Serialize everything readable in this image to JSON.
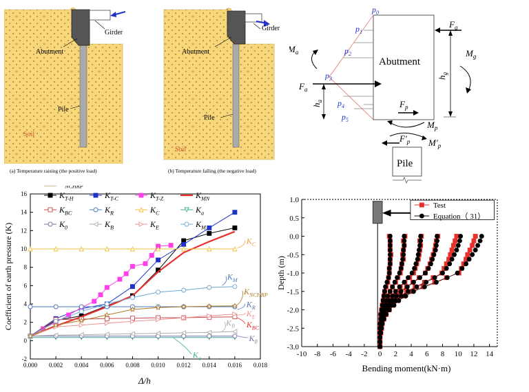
{
  "panel_a": {
    "girder": "Girder",
    "abutment": "Abutment",
    "pile": "Pile",
    "soil": "Soil",
    "caption": "(a) Temperature raising (the positive load)"
  },
  "panel_b": {
    "girder": "Girder",
    "abutment": "Abutment",
    "pile": "Pile",
    "soil": "Soil",
    "caption": "(b) Temperature falling (the negative load)"
  },
  "diagram": {
    "abutment": "Abutment",
    "pile": "Pile",
    "p0": "p",
    "p0s": "0",
    "p1": "p",
    "p1s": "1",
    "p2": "p",
    "p2s": "2",
    "p3": "p",
    "p3s": "3",
    "p4": "p",
    "p4s": "4",
    "p5": "p",
    "p5s": "5",
    "Fg": "F",
    "Fgs": "g",
    "Ma": "M",
    "Mas": "a",
    "Mg": "M",
    "Mgs": "g",
    "Fa": "F",
    "Fas": "a",
    "hg": "h",
    "hgs": "g",
    "ha": "h",
    "has": "a",
    "Fp": "F",
    "Fps": "p",
    "Mp": "M",
    "Mps": "p",
    "Fp2": "F′",
    "Fp2s": "p",
    "Mp2": "M′",
    "Mp2s": "p"
  },
  "colors": {
    "soil": "#f8d77a",
    "red": "#e8312c",
    "blue": "#1f34c7",
    "magenta": "#ff3ee8",
    "diag_red": "#e88a8a"
  },
  "chart_data": [
    {
      "type": "line",
      "xlabel": "Δ/h",
      "ylabel": "Coefficient of earth pressure (K)",
      "xlim": [
        0,
        0.018
      ],
      "ylim": [
        -2,
        16
      ],
      "xticks": [
        "0.000",
        "0.002",
        "0.004",
        "0.006",
        "0.008",
        "0.010",
        "0.012",
        "0.014",
        "0.016",
        "0.018"
      ],
      "yticks": [
        "-2",
        "0",
        "2",
        "4",
        "6",
        "8",
        "10",
        "12",
        "14",
        "16"
      ],
      "legend": [
        {
          "base": "K",
          "sub": "T-H"
        },
        {
          "base": "K",
          "sub": "T-C"
        },
        {
          "base": "K",
          "sub": "T-Z"
        },
        {
          "base": "K",
          "sub": "MN"
        },
        {
          "base": "K",
          "sub": "BC"
        },
        {
          "base": "K",
          "sub": "R"
        },
        {
          "base": "K",
          "sub": "C"
        },
        {
          "base": "K",
          "sub": "a"
        },
        {
          "base": "K",
          "sub": "0"
        },
        {
          "base": "K",
          "sub": "B"
        },
        {
          "base": "K",
          "sub": "E"
        },
        {
          "base": "K",
          "sub": "M"
        },
        {
          "base": "K",
          "sub": "NCHRP"
        }
      ],
      "series": [
        {
          "name": "K_T-H",
          "color": "#000000",
          "marker": "square-filled",
          "x": [
            0,
            0.002,
            0.004,
            0.006,
            0.008,
            0.01,
            0.012,
            0.014,
            0.016
          ],
          "y": [
            0.5,
            2.2,
            2.7,
            3.8,
            4.9,
            7.7,
            10.9,
            11.7,
            12.3
          ]
        },
        {
          "name": "K_T-C",
          "color": "#1f34c7",
          "marker": "square-filled",
          "x": [
            0,
            0.002,
            0.004,
            0.006,
            0.008,
            0.01,
            0.012,
            0.014,
            0.016
          ],
          "y": [
            0.5,
            2.4,
            3.5,
            4.0,
            5.9,
            8.8,
            10.5,
            12.3,
            14.0
          ]
        },
        {
          "name": "K_T-Z",
          "color": "#ff3ee8",
          "marker": "square-filled",
          "x": [
            0,
            0.001,
            0.002,
            0.003,
            0.004,
            0.005,
            0.0055,
            0.006,
            0.007,
            0.0075,
            0.008,
            0.009,
            0.0095,
            0.01,
            0.011
          ],
          "y": [
            0.5,
            1.3,
            2.0,
            2.8,
            3.6,
            4.3,
            5.0,
            5.8,
            6.7,
            7.3,
            8.1,
            8.4,
            9.3,
            10.3,
            10.4
          ]
        },
        {
          "name": "K_MN",
          "color": "#e8312c",
          "marker": "none",
          "width": 2.2,
          "x": [
            0,
            0.002,
            0.004,
            0.006,
            0.008,
            0.01,
            0.012,
            0.014,
            0.016
          ],
          "y": [
            0.5,
            1.6,
            2.6,
            3.7,
            4.9,
            7.5,
            9.6,
            10.8,
            11.9
          ]
        },
        {
          "name": "K_BC",
          "color": "#c84a4a",
          "marker": "square-open",
          "x": [
            0,
            0.002,
            0.004,
            0.006,
            0.008,
            0.01,
            0.012,
            0.014,
            0.016
          ],
          "y": [
            0.5,
            2.3,
            2.35,
            2.4,
            2.45,
            2.5,
            2.5,
            2.55,
            2.6
          ]
        },
        {
          "name": "K_R",
          "color": "#4a78b8",
          "marker": "circle-open",
          "x": [
            0,
            0.002,
            0.004,
            0.006,
            0.008,
            0.01,
            0.012,
            0.014,
            0.016
          ],
          "y": [
            3.7,
            3.7,
            3.7,
            3.7,
            3.7,
            3.7,
            3.7,
            3.7,
            3.7
          ]
        },
        {
          "name": "K_C",
          "color": "#f0c040",
          "marker": "triangle-up-open",
          "x": [
            0,
            0.002,
            0.004,
            0.006,
            0.008,
            0.01,
            0.012,
            0.014,
            0.016
          ],
          "y": [
            10,
            10,
            10,
            10,
            10,
            10,
            10,
            10,
            10
          ]
        },
        {
          "name": "K_a",
          "color": "#40b090",
          "marker": "triangle-down-open",
          "x": [
            0,
            0.002,
            0.004,
            0.006,
            0.008,
            0.01,
            0.012,
            0.014,
            0.016
          ],
          "y": [
            0.35,
            0.35,
            0.35,
            0.35,
            0.35,
            0.35,
            0.35,
            0.35,
            0.35
          ]
        },
        {
          "name": "K_0",
          "color": "#7070a8",
          "marker": "circle-open",
          "x": [
            0,
            0.002,
            0.004,
            0.006,
            0.008,
            0.01,
            0.012,
            0.014,
            0.016
          ],
          "y": [
            0.5,
            0.5,
            0.5,
            0.5,
            0.5,
            0.5,
            0.5,
            0.5,
            0.5
          ]
        },
        {
          "name": "K_B",
          "color": "#aaaaaa",
          "marker": "triangle-left-open",
          "x": [
            0,
            0.002,
            0.004,
            0.006,
            0.008,
            0.01,
            0.012,
            0.014,
            0.016
          ],
          "y": [
            0.5,
            0.6,
            0.65,
            0.7,
            0.75,
            0.8,
            0.85,
            0.9,
            1.0
          ]
        },
        {
          "name": "K_E",
          "color": "#f09090",
          "marker": "triangle-right-open",
          "x": [
            0,
            0.002,
            0.004,
            0.006,
            0.008,
            0.01,
            0.012,
            0.014,
            0.016
          ],
          "y": [
            0.5,
            1.5,
            1.7,
            1.9,
            2.1,
            2.3,
            2.5,
            2.7,
            2.9
          ]
        },
        {
          "name": "K_M",
          "color": "#6aa8d8",
          "marker": "circle-open",
          "x": [
            0,
            0.002,
            0.004,
            0.006,
            0.008,
            0.01,
            0.012,
            0.014,
            0.016
          ],
          "y": [
            0.5,
            2.1,
            3.2,
            4.0,
            4.7,
            5.3,
            5.5,
            5.8,
            5.9
          ]
        },
        {
          "name": "K_NCHRP",
          "color": "#b07828",
          "marker": "star-open",
          "x": [
            0,
            0.002,
            0.004,
            0.006,
            0.008,
            0.01,
            0.012,
            0.014,
            0.016
          ],
          "y": [
            0.5,
            1.7,
            2.2,
            2.8,
            3.4,
            3.6,
            3.7,
            3.75,
            3.8
          ]
        }
      ],
      "annotations": [
        {
          "base": "K",
          "sub": "C",
          "x": 0.0168,
          "y": 10.7,
          "color": "#f0a040",
          "ax": 0.0162,
          "ay": 10.1
        },
        {
          "base": "K",
          "sub": "M",
          "x": 0.0153,
          "y": 6.8,
          "color": "#4a78b8",
          "ax": 0.015,
          "ay": 6.0
        },
        {
          "base": "K",
          "sub": "NCHRP",
          "x": 0.0166,
          "y": 5.2,
          "color": "#b07828",
          "ax": 0.0162,
          "ay": 3.9
        },
        {
          "base": "K",
          "sub": "R",
          "x": 0.0168,
          "y": 3.8,
          "color": "#4a78b8",
          "ax": 0.0162,
          "ay": 3.4
        },
        {
          "base": "K",
          "sub": "E",
          "x": 0.0168,
          "y": 2.8,
          "color": "#f09090",
          "ax": 0.0162,
          "ay": 2.8
        },
        {
          "base": "K",
          "sub": "BC",
          "x": 0.0168,
          "y": 1.6,
          "color": "#e8312c",
          "ax": 0.0162,
          "ay": 2.5
        },
        {
          "base": "K",
          "sub": "B",
          "x": 0.0152,
          "y": 1.8,
          "color": "#aaaaaa",
          "ax": 0.015,
          "ay": 1.0
        },
        {
          "base": "K",
          "sub": "0",
          "x": 0.017,
          "y": 0.1,
          "color": "#7070a8",
          "ax": 0.0162,
          "ay": 0.5
        },
        {
          "base": "K",
          "sub": "a",
          "x": 0.0126,
          "y": -1.7,
          "color": "#40b090",
          "ax": 0.0112,
          "ay": 0.3
        }
      ]
    },
    {
      "type": "line",
      "xlabel": "Bending moment(kN·m)",
      "ylabel": "Depth (m)",
      "xlim": [
        -10,
        15
      ],
      "ylim": [
        -3.0,
        1.0
      ],
      "xticks": [
        "-10",
        "-8",
        "-6",
        "-4",
        "-2",
        "0",
        "2",
        "4",
        "6",
        "8",
        "10",
        "12",
        "14"
      ],
      "yticks": [
        "1.0",
        "0.5",
        "0.0",
        "-0.5",
        "-1.0",
        "-1.5",
        "-2.0",
        "-2.5",
        "-3.0"
      ],
      "legend": [
        {
          "label": "Test"
        },
        {
          "label": "Equation（ 31）"
        }
      ],
      "depths": [
        0,
        -0.125,
        -0.25,
        -0.375,
        -0.5,
        -0.625,
        -0.75,
        -0.875,
        -1.0,
        -1.125,
        -1.25,
        -1.375,
        -1.5,
        -1.625,
        -1.75,
        -1.875,
        -2.0,
        -2.125,
        -2.25,
        -2.375,
        -2.5,
        -2.625,
        -2.75,
        -2.875,
        -3.0
      ],
      "series": [
        {
          "name": "Test",
          "color": "#e8312c",
          "marker": "square-filled",
          "curves": [
            [
              1.2,
              1.3,
              1.3,
              1.3,
              1.4,
              1.3,
              1.3,
              1.2,
              1.2,
              1.1,
              1.0,
              0.8,
              0.6,
              0.5,
              0.4,
              0.3,
              0.2,
              0.1,
              0.1,
              0.0,
              0.0,
              0.0,
              0.0,
              0.0,
              0.0
            ],
            [
              3.2,
              3.0,
              3.1,
              3.0,
              2.9,
              3.0,
              2.8,
              2.7,
              2.6,
              2.3,
              2.0,
              1.6,
              1.3,
              1.0,
              0.8,
              0.6,
              0.5,
              0.3,
              0.2,
              0.1,
              0.1,
              0.0,
              0.0,
              0.0,
              0.0
            ],
            [
              5.3,
              5.1,
              5.2,
              5.1,
              5.0,
              4.9,
              4.7,
              4.5,
              4.3,
              3.8,
              3.2,
              2.6,
              2.0,
              1.6,
              1.2,
              0.9,
              0.7,
              0.5,
              0.3,
              0.2,
              0.1,
              0.1,
              0.0,
              0.0,
              0.0
            ],
            [
              7.4,
              7.2,
              7.1,
              7.0,
              6.8,
              6.6,
              6.4,
              6.1,
              5.8,
              5.0,
              4.2,
              3.4,
              2.6,
              2.0,
              1.5,
              1.1,
              0.8,
              0.6,
              0.4,
              0.2,
              0.1,
              0.1,
              0.0,
              0.0,
              0.0
            ],
            [
              9.8,
              9.6,
              9.4,
              9.2,
              9.0,
              8.8,
              8.5,
              8.2,
              7.9,
              6.8,
              5.7,
              4.5,
              3.4,
              2.6,
              1.9,
              1.4,
              1.0,
              0.7,
              0.5,
              0.3,
              0.2,
              0.1,
              0.0,
              0.0,
              0.0
            ],
            [
              12.2,
              12.0,
              11.8,
              11.5,
              11.2,
              11.0,
              10.7,
              10.4,
              10.1,
              8.5,
              7.0,
              5.5,
              4.1,
              3.1,
              2.3,
              1.7,
              1.2,
              0.8,
              0.5,
              0.3,
              0.2,
              0.1,
              0.0,
              0.0,
              0.0
            ]
          ]
        },
        {
          "name": "Equation（ 31）",
          "color": "#000000",
          "marker": "circle-filled",
          "curves": [
            [
              1.3,
              1.3,
              1.3,
              1.3,
              1.3,
              1.3,
              1.3,
              1.2,
              1.2,
              1.1,
              0.9,
              0.7,
              0.6,
              0.5,
              0.4,
              0.3,
              0.2,
              0.1,
              0.1,
              0.0,
              0.0,
              0.0,
              0.0,
              0.0,
              0.0
            ],
            [
              3.1,
              3.1,
              3.1,
              3.0,
              3.0,
              2.9,
              2.8,
              2.7,
              2.5,
              2.2,
              1.9,
              1.6,
              1.3,
              1.0,
              0.8,
              0.6,
              0.4,
              0.3,
              0.2,
              0.1,
              0.1,
              0.0,
              0.0,
              0.0,
              0.0
            ],
            [
              5.2,
              5.2,
              5.1,
              5.0,
              4.9,
              4.8,
              4.6,
              4.4,
              4.1,
              3.6,
              3.1,
              2.5,
              2.0,
              1.6,
              1.2,
              0.9,
              0.6,
              0.4,
              0.3,
              0.2,
              0.1,
              0.0,
              0.0,
              0.0,
              0.0
            ],
            [
              7.3,
              7.3,
              7.2,
              7.1,
              6.9,
              6.7,
              6.5,
              6.2,
              5.8,
              5.1,
              4.3,
              3.5,
              2.7,
              2.1,
              1.6,
              1.2,
              0.8,
              0.6,
              0.4,
              0.2,
              0.1,
              0.1,
              0.0,
              0.0,
              0.0
            ],
            [
              10.3,
              10.2,
              10.0,
              9.8,
              9.5,
              9.2,
              8.9,
              8.5,
              8.0,
              7.0,
              5.9,
              4.7,
              3.6,
              2.7,
              2.0,
              1.5,
              1.0,
              0.7,
              0.5,
              0.3,
              0.2,
              0.1,
              0.0,
              0.0,
              0.0
            ],
            [
              13.0,
              12.8,
              12.5,
              12.2,
              11.8,
              11.4,
              11.0,
              10.5,
              9.9,
              8.6,
              7.2,
              5.7,
              4.3,
              3.3,
              2.4,
              1.8,
              1.2,
              0.8,
              0.5,
              0.3,
              0.2,
              0.1,
              0.0,
              0.0,
              0.0
            ]
          ]
        }
      ]
    }
  ]
}
